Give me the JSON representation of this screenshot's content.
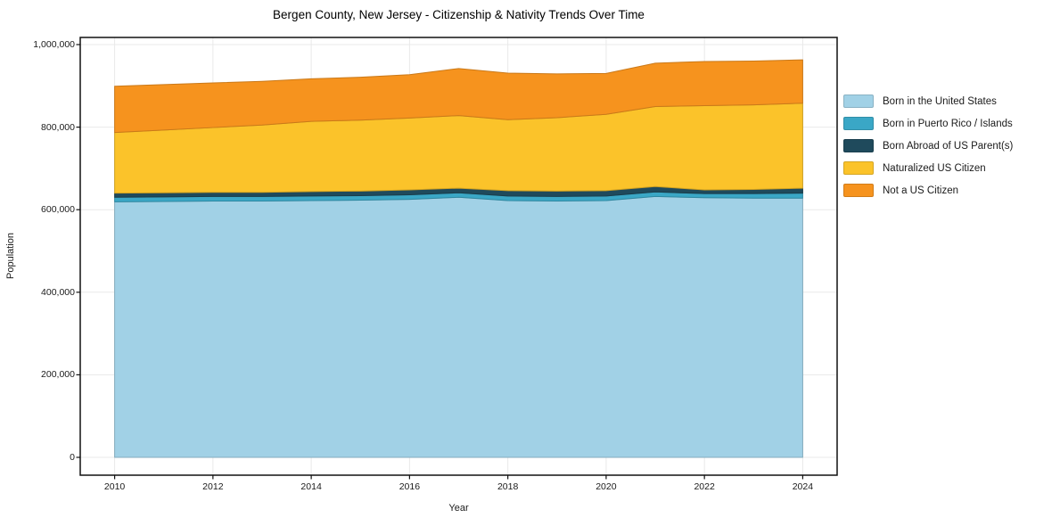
{
  "title": "Bergen County, New Jersey - Citizenship & Nativity Trends Over Time",
  "axes": {
    "xlabel": "Year",
    "ylabel": "Population",
    "x_tick_labels": [
      "2010",
      "2012",
      "2014",
      "2016",
      "2018",
      "2020",
      "2022",
      "2024"
    ],
    "y_tick_labels": [
      "0",
      "200,000",
      "400,000",
      "600,000",
      "800,000",
      "1,000,000"
    ]
  },
  "colors": {
    "grid": "#e9e9e9",
    "spine": "#111111",
    "background": "#ffffff"
  },
  "chart_data": {
    "type": "area",
    "stacked": true,
    "title": "Bergen County, New Jersey - Citizenship & Nativity Trends Over Time",
    "xlabel": "Year",
    "ylabel": "Population",
    "grid": true,
    "legend_position": "right",
    "x_ticks": [
      2010,
      2012,
      2014,
      2016,
      2018,
      2020,
      2022,
      2024
    ],
    "y_ticks": [
      0,
      200000,
      400000,
      600000,
      800000,
      1000000
    ],
    "ylim": [
      0,
      1000000
    ],
    "x": [
      2010,
      2011,
      2012,
      2013,
      2014,
      2015,
      2016,
      2017,
      2018,
      2019,
      2020,
      2021,
      2022,
      2023,
      2024
    ],
    "series": [
      {
        "name": "Born in the United States",
        "color": "#a1d1e6",
        "values": [
          619000,
          620000,
          621000,
          621000,
          622000,
          623000,
          625000,
          630000,
          622000,
          621000,
          622000,
          632000,
          629000,
          628000,
          628000
        ]
      },
      {
        "name": "Born in Puerto Rico / Islands",
        "color": "#3aa7c6",
        "values": [
          11000,
          11000,
          11000,
          11000,
          11000,
          11000,
          11000,
          11000,
          11000,
          11000,
          11000,
          11000,
          10000,
          11000,
          12000
        ]
      },
      {
        "name": "Born Abroad of US Parent(s)",
        "color": "#1f4a5c",
        "values": [
          10000,
          10000,
          10000,
          10000,
          11000,
          11000,
          12000,
          11000,
          13000,
          13000,
          13000,
          13000,
          9000,
          10000,
          12000
        ]
      },
      {
        "name": "Naturalized US Citizen",
        "color": "#fbc32a",
        "values": [
          147000,
          152000,
          157000,
          163000,
          170000,
          172000,
          174000,
          176000,
          172000,
          178000,
          185000,
          194000,
          204000,
          205000,
          206000
        ]
      },
      {
        "name": "Not a US Citizen",
        "color": "#f6931e",
        "values": [
          112000,
          110000,
          108000,
          106000,
          103000,
          104000,
          105000,
          114000,
          113000,
          106000,
          99000,
          105000,
          107000,
          106000,
          105000
        ]
      }
    ]
  }
}
